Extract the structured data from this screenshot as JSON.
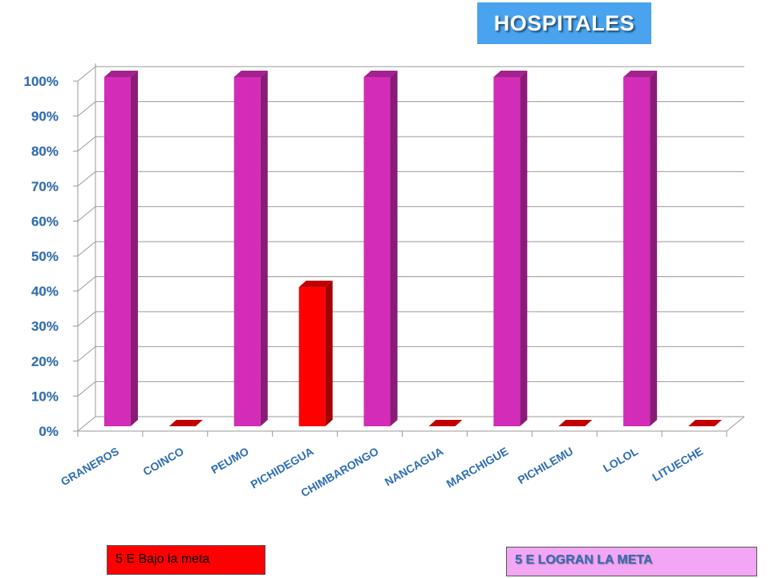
{
  "chart_data": {
    "type": "bar",
    "title": "HOSPITALES",
    "categories": [
      "GRANEROS",
      "COINCO",
      "PEUMO",
      "PICHIDEGUA",
      "CHIMBARONGO",
      "NANCAGUA",
      "MARCHIGUE",
      "PICHILEMU",
      "LOLOL",
      "LITUECHE"
    ],
    "values": [
      100,
      0,
      100,
      0,
      100,
      0,
      100,
      0,
      100,
      0
    ],
    "highlight_values": [
      0,
      0,
      0,
      40,
      0,
      0,
      0,
      0,
      0,
      0
    ],
    "y_ticks": [
      "0%",
      "10%",
      "20%",
      "30%",
      "40%",
      "50%",
      "60%",
      "70%",
      "80%",
      "90%",
      "100%"
    ],
    "ylim": [
      0,
      100
    ],
    "grid": true,
    "style": "3d-column",
    "colors": {
      "main_front": "#d32cb8",
      "main_side": "#8a1c78",
      "main_top": "#a3228e",
      "low_front": "#ff0000",
      "low_side": "#a30000",
      "low_top": "#c00000"
    }
  },
  "legend": {
    "red_label": "5 E Bajo la meta",
    "pink_label": "5 E  LOGRAN LA META"
  }
}
